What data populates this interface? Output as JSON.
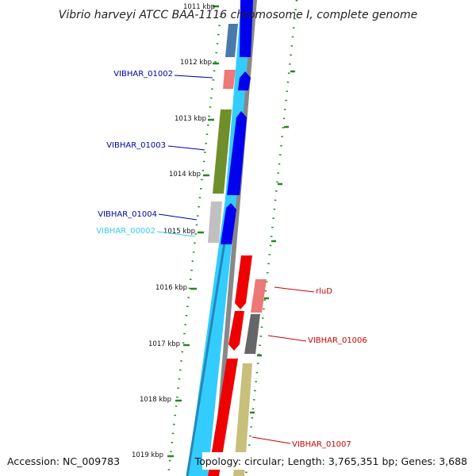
{
  "header": {
    "title": "Vibrio harveyi ATCC BAA-1116 chromosome I, complete genome"
  },
  "footer": {
    "accession": "Accession: NC_009783",
    "summary": "Topology: circular; Length: 3,765,351 bp; Genes: 3,688"
  },
  "ruler": {
    "labels": [
      "1011 kbp",
      "1012 kbp",
      "1013 kbp",
      "1014 kbp",
      "1015 kbp",
      "1016 kbp",
      "1017 kbp",
      "1018 kbp",
      "1019 kbp"
    ]
  },
  "genes": {
    "left": [
      {
        "name": "VIBHAR_01002",
        "color": "#0000aa"
      },
      {
        "name": "VIBHAR_01003",
        "color": "#0000aa"
      },
      {
        "name": "VIBHAR_01004",
        "color": "#0000aa"
      },
      {
        "name": "VIBHAR_00002",
        "color": "#33ccee"
      }
    ],
    "right": [
      {
        "name": "rluD",
        "color": "#cc0000"
      },
      {
        "name": "VIBHAR_01006",
        "color": "#cc0000"
      },
      {
        "name": "VIBHAR_01007",
        "color": "#cc0000"
      }
    ]
  },
  "colors": {
    "forward_strand": "#0000ee",
    "reverse_strand": "#ee0000",
    "rna": "#33ccff",
    "backbone": "#888888",
    "ticks": "#228822"
  }
}
